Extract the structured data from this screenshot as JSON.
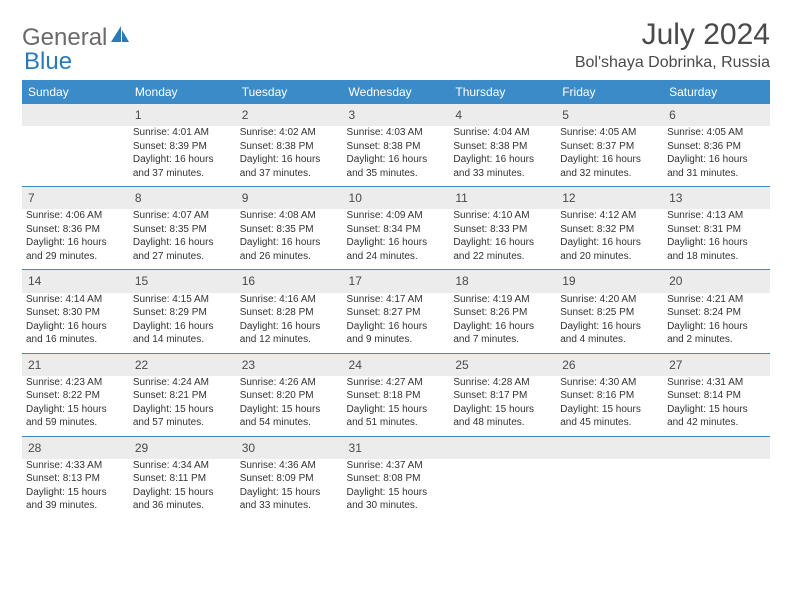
{
  "logo": {
    "text_gray": "General",
    "text_blue": "Blue"
  },
  "header": {
    "month_title": "July 2024",
    "location": "Bol'shaya Dobrinka, Russia"
  },
  "colors": {
    "header_bg": "#3b8bc8",
    "header_text": "#ffffff",
    "daynum_bg": "#ececec",
    "week_divider": "#3b8bc8",
    "body_text": "#333333",
    "title_text": "#4a4a4a"
  },
  "day_headers": [
    "Sunday",
    "Monday",
    "Tuesday",
    "Wednesday",
    "Thursday",
    "Friday",
    "Saturday"
  ],
  "weeks": [
    {
      "nums": [
        "",
        "1",
        "2",
        "3",
        "4",
        "5",
        "6"
      ],
      "days": [
        null,
        {
          "sunrise": "Sunrise: 4:01 AM",
          "sunset": "Sunset: 8:39 PM",
          "daylight": "Daylight: 16 hours and 37 minutes."
        },
        {
          "sunrise": "Sunrise: 4:02 AM",
          "sunset": "Sunset: 8:38 PM",
          "daylight": "Daylight: 16 hours and 37 minutes."
        },
        {
          "sunrise": "Sunrise: 4:03 AM",
          "sunset": "Sunset: 8:38 PM",
          "daylight": "Daylight: 16 hours and 35 minutes."
        },
        {
          "sunrise": "Sunrise: 4:04 AM",
          "sunset": "Sunset: 8:38 PM",
          "daylight": "Daylight: 16 hours and 33 minutes."
        },
        {
          "sunrise": "Sunrise: 4:05 AM",
          "sunset": "Sunset: 8:37 PM",
          "daylight": "Daylight: 16 hours and 32 minutes."
        },
        {
          "sunrise": "Sunrise: 4:05 AM",
          "sunset": "Sunset: 8:36 PM",
          "daylight": "Daylight: 16 hours and 31 minutes."
        }
      ]
    },
    {
      "nums": [
        "7",
        "8",
        "9",
        "10",
        "11",
        "12",
        "13"
      ],
      "days": [
        {
          "sunrise": "Sunrise: 4:06 AM",
          "sunset": "Sunset: 8:36 PM",
          "daylight": "Daylight: 16 hours and 29 minutes."
        },
        {
          "sunrise": "Sunrise: 4:07 AM",
          "sunset": "Sunset: 8:35 PM",
          "daylight": "Daylight: 16 hours and 27 minutes."
        },
        {
          "sunrise": "Sunrise: 4:08 AM",
          "sunset": "Sunset: 8:35 PM",
          "daylight": "Daylight: 16 hours and 26 minutes."
        },
        {
          "sunrise": "Sunrise: 4:09 AM",
          "sunset": "Sunset: 8:34 PM",
          "daylight": "Daylight: 16 hours and 24 minutes."
        },
        {
          "sunrise": "Sunrise: 4:10 AM",
          "sunset": "Sunset: 8:33 PM",
          "daylight": "Daylight: 16 hours and 22 minutes."
        },
        {
          "sunrise": "Sunrise: 4:12 AM",
          "sunset": "Sunset: 8:32 PM",
          "daylight": "Daylight: 16 hours and 20 minutes."
        },
        {
          "sunrise": "Sunrise: 4:13 AM",
          "sunset": "Sunset: 8:31 PM",
          "daylight": "Daylight: 16 hours and 18 minutes."
        }
      ]
    },
    {
      "nums": [
        "14",
        "15",
        "16",
        "17",
        "18",
        "19",
        "20"
      ],
      "days": [
        {
          "sunrise": "Sunrise: 4:14 AM",
          "sunset": "Sunset: 8:30 PM",
          "daylight": "Daylight: 16 hours and 16 minutes."
        },
        {
          "sunrise": "Sunrise: 4:15 AM",
          "sunset": "Sunset: 8:29 PM",
          "daylight": "Daylight: 16 hours and 14 minutes."
        },
        {
          "sunrise": "Sunrise: 4:16 AM",
          "sunset": "Sunset: 8:28 PM",
          "daylight": "Daylight: 16 hours and 12 minutes."
        },
        {
          "sunrise": "Sunrise: 4:17 AM",
          "sunset": "Sunset: 8:27 PM",
          "daylight": "Daylight: 16 hours and 9 minutes."
        },
        {
          "sunrise": "Sunrise: 4:19 AM",
          "sunset": "Sunset: 8:26 PM",
          "daylight": "Daylight: 16 hours and 7 minutes."
        },
        {
          "sunrise": "Sunrise: 4:20 AM",
          "sunset": "Sunset: 8:25 PM",
          "daylight": "Daylight: 16 hours and 4 minutes."
        },
        {
          "sunrise": "Sunrise: 4:21 AM",
          "sunset": "Sunset: 8:24 PM",
          "daylight": "Daylight: 16 hours and 2 minutes."
        }
      ]
    },
    {
      "nums": [
        "21",
        "22",
        "23",
        "24",
        "25",
        "26",
        "27"
      ],
      "days": [
        {
          "sunrise": "Sunrise: 4:23 AM",
          "sunset": "Sunset: 8:22 PM",
          "daylight": "Daylight: 15 hours and 59 minutes."
        },
        {
          "sunrise": "Sunrise: 4:24 AM",
          "sunset": "Sunset: 8:21 PM",
          "daylight": "Daylight: 15 hours and 57 minutes."
        },
        {
          "sunrise": "Sunrise: 4:26 AM",
          "sunset": "Sunset: 8:20 PM",
          "daylight": "Daylight: 15 hours and 54 minutes."
        },
        {
          "sunrise": "Sunrise: 4:27 AM",
          "sunset": "Sunset: 8:18 PM",
          "daylight": "Daylight: 15 hours and 51 minutes."
        },
        {
          "sunrise": "Sunrise: 4:28 AM",
          "sunset": "Sunset: 8:17 PM",
          "daylight": "Daylight: 15 hours and 48 minutes."
        },
        {
          "sunrise": "Sunrise: 4:30 AM",
          "sunset": "Sunset: 8:16 PM",
          "daylight": "Daylight: 15 hours and 45 minutes."
        },
        {
          "sunrise": "Sunrise: 4:31 AM",
          "sunset": "Sunset: 8:14 PM",
          "daylight": "Daylight: 15 hours and 42 minutes."
        }
      ]
    },
    {
      "nums": [
        "28",
        "29",
        "30",
        "31",
        "",
        "",
        ""
      ],
      "days": [
        {
          "sunrise": "Sunrise: 4:33 AM",
          "sunset": "Sunset: 8:13 PM",
          "daylight": "Daylight: 15 hours and 39 minutes."
        },
        {
          "sunrise": "Sunrise: 4:34 AM",
          "sunset": "Sunset: 8:11 PM",
          "daylight": "Daylight: 15 hours and 36 minutes."
        },
        {
          "sunrise": "Sunrise: 4:36 AM",
          "sunset": "Sunset: 8:09 PM",
          "daylight": "Daylight: 15 hours and 33 minutes."
        },
        {
          "sunrise": "Sunrise: 4:37 AM",
          "sunset": "Sunset: 8:08 PM",
          "daylight": "Daylight: 15 hours and 30 minutes."
        },
        null,
        null,
        null
      ]
    }
  ]
}
